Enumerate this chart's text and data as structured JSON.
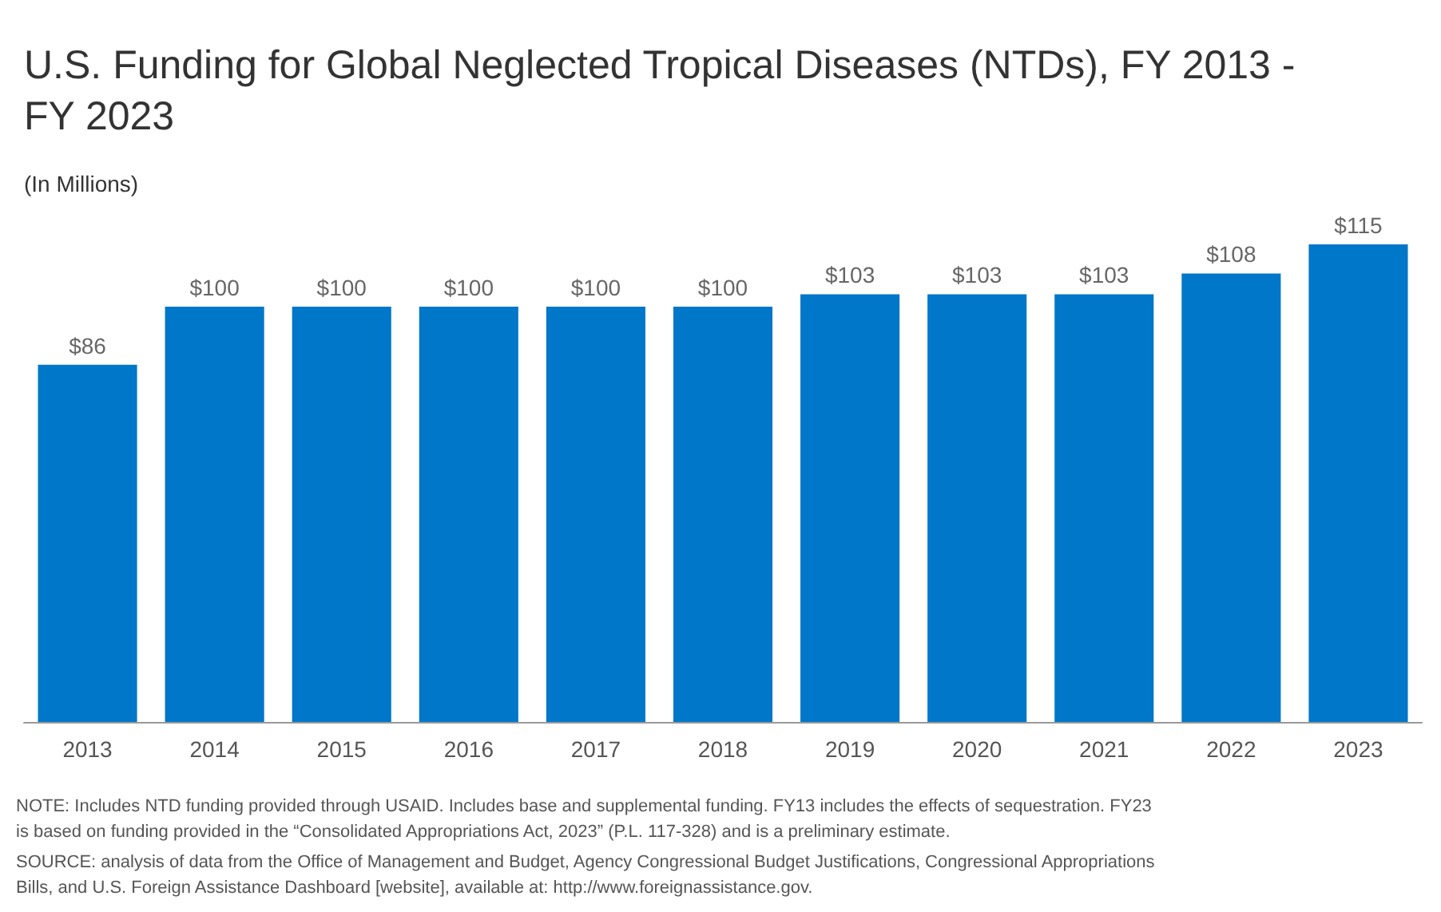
{
  "chart_data": {
    "type": "bar",
    "title": "U.S. Funding for Global Neglected Tropical Diseases (NTDs), FY 2013 - FY 2023",
    "subtitle": "(In Millions)",
    "categories": [
      "2013",
      "2014",
      "2015",
      "2016",
      "2017",
      "2018",
      "2019",
      "2020",
      "2021",
      "2022",
      "2023"
    ],
    "values": [
      86,
      100,
      100,
      100,
      100,
      100,
      103,
      103,
      103,
      108,
      115
    ],
    "value_labels": [
      "$86",
      "$100",
      "$100",
      "$100",
      "$100",
      "$100",
      "$103",
      "$103",
      "$103",
      "$108",
      "$115"
    ],
    "color": "#0077c8",
    "annotations": [
      "NOTE: Includes NTD funding provided through USAID. Includes base and supplemental funding. FY13 includes the effects of sequestration. FY23 is based on funding provided in the “Consolidated Appropriations Act, 2023” (P.L. 117-328) and is a preliminary estimate.",
      "SOURCE: analysis of data from the Office of Management and Budget, Agency Congressional Budget Justifications, Congressional Appropriations Bills, and U.S. Foreign Assistance Dashboard [website], available at: http://www.foreignassistance.gov."
    ]
  }
}
